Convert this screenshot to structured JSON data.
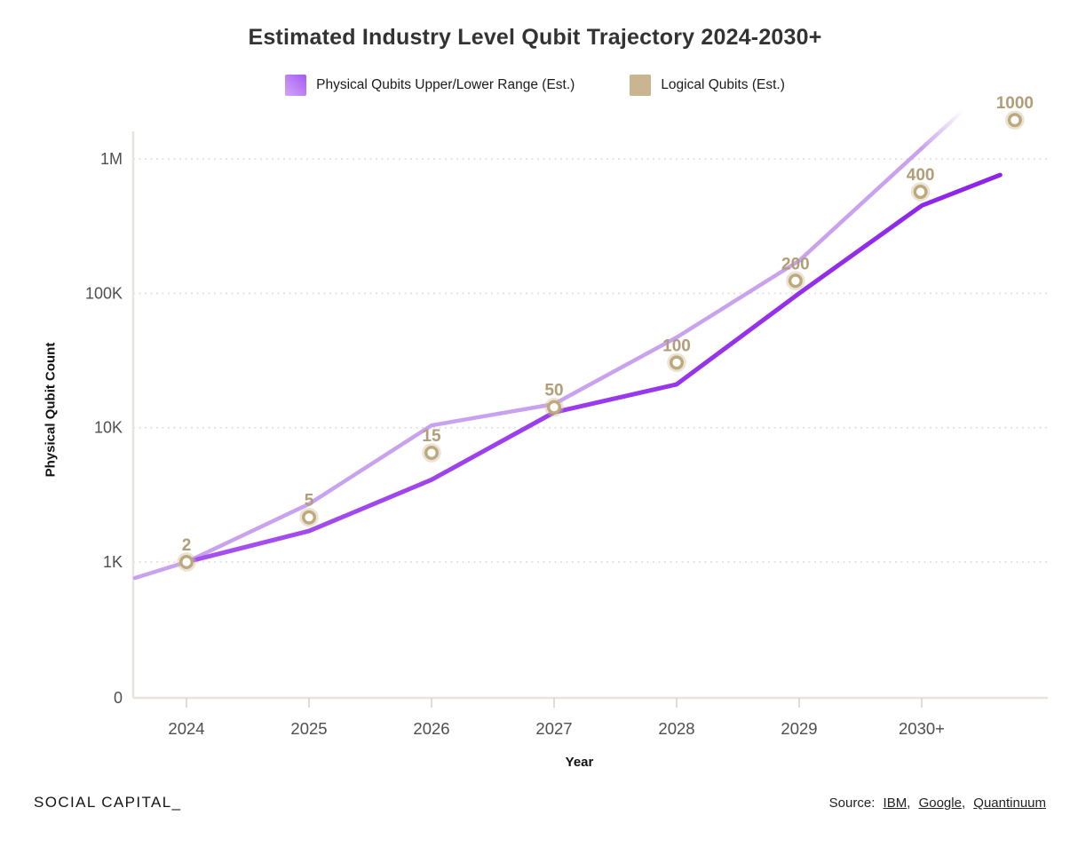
{
  "title": "Estimated Industry Level Qubit Trajectory 2024-2030+",
  "legend": {
    "physical_label": "Physical Qubits Upper/Lower Range (Est.)",
    "logical_label": "Logical Qubits (Est.)"
  },
  "axes": {
    "xlabel": "Year",
    "ylabel": "Physical Qubit Count"
  },
  "footer": {
    "brand": "SOCIAL CAPITAL_",
    "source_prefix": "Source:",
    "sources": [
      "IBM",
      "Google",
      "Quantinuum"
    ],
    "separator": ","
  },
  "colors": {
    "physical_dark_line_start": "#a751ef",
    "physical_dark_line_end": "#8d23e9",
    "physical_light_line": "#c9a2ef",
    "logical_ring": "#bda97e",
    "logical_halo": "#cdbc97",
    "logical_label_text": "#b19e78",
    "grid_line": "#e0dcd6",
    "axis_line": "#e7e3df",
    "tick_text": "#4f4f4f"
  },
  "chart_data": {
    "type": "line",
    "title": "Estimated Industry Level Qubit Trajectory 2024-2030+",
    "xlabel": "Year",
    "ylabel": "Physical Qubit Count",
    "x_categories": [
      "2024",
      "2025",
      "2026",
      "2027",
      "2028",
      "2029",
      "2030+"
    ],
    "y_scale": "log",
    "y_ticks": [
      {
        "label": "1M",
        "value": 1000000
      },
      {
        "label": "100K",
        "value": 100000
      },
      {
        "label": "10K",
        "value": 10000
      },
      {
        "label": "1K",
        "value": 1000
      },
      {
        "label": "0",
        "value": 0
      }
    ],
    "grid": true,
    "legend_position": "top",
    "series": [
      {
        "name": "Physical Qubits Upper Range (Est.)",
        "role": "upper",
        "points": [
          {
            "x": -0.42,
            "value": 760
          },
          {
            "x": 0,
            "value": 1000
          },
          {
            "x": 1,
            "value": 2700
          },
          {
            "x": 2,
            "value": 10400
          },
          {
            "x": 3,
            "value": 15000
          },
          {
            "x": 4,
            "value": 47000
          },
          {
            "x": 5,
            "value": 175000
          },
          {
            "x": 6,
            "value": 1200000
          },
          {
            "x": 6.34,
            "value": 2300000,
            "fade": true
          }
        ]
      },
      {
        "name": "Physical Qubits Lower Range (Est.)",
        "role": "lower",
        "points": [
          {
            "x": 0,
            "value": 1000
          },
          {
            "x": 1,
            "value": 1700
          },
          {
            "x": 2,
            "value": 4100
          },
          {
            "x": 3,
            "value": 13000
          },
          {
            "x": 4,
            "value": 21000
          },
          {
            "x": 5,
            "value": 100000
          },
          {
            "x": 6,
            "value": 450000
          },
          {
            "x": 6.64,
            "value": 760000
          }
        ]
      }
    ],
    "logical_series": {
      "name": "Logical Qubits (Est.)",
      "points": [
        {
          "x": 0,
          "label": "2",
          "plot_value": 1000
        },
        {
          "x": 1,
          "label": "5",
          "plot_value": 2150
        },
        {
          "x": 2,
          "label": "15",
          "plot_value": 6500
        },
        {
          "x": 3,
          "label": "50",
          "plot_value": 14200
        },
        {
          "x": 4,
          "label": "100",
          "plot_value": 30500
        },
        {
          "x": 4.97,
          "label": "200",
          "plot_value": 124000
        },
        {
          "x": 5.99,
          "label": "400",
          "plot_value": 570000
        },
        {
          "x": 6.76,
          "label": "1000",
          "plot_value": 1950000
        }
      ]
    }
  }
}
